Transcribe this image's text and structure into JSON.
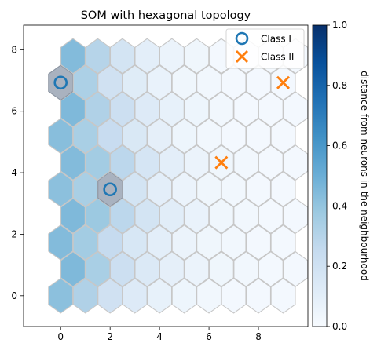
{
  "chart_data": {
    "type": "heatmap",
    "title": "SOM with hexagonal topology",
    "xlabel": "",
    "ylabel": "",
    "xlim": [
      -1.5,
      10.0
    ],
    "ylim": [
      -1.0,
      8.8
    ],
    "x_ticks": [
      0,
      2,
      4,
      6,
      8
    ],
    "y_ticks": [
      0,
      2,
      4,
      6,
      8
    ],
    "grid": false,
    "hex_grid": {
      "columns": 10,
      "rows": 10,
      "row_spacing": 0.866,
      "odd_row_offset": 0.5,
      "values_by_row_bottom_to_top": [
        [
          0.42,
          0.32,
          0.2,
          0.13,
          0.08,
          0.05,
          0.03,
          0.02,
          0.02,
          0.02
        ],
        [
          0.45,
          0.34,
          0.22,
          0.14,
          0.09,
          0.06,
          0.04,
          0.03,
          0.02,
          0.02
        ],
        [
          0.44,
          0.36,
          0.25,
          0.16,
          0.1,
          0.06,
          0.04,
          0.03,
          0.02,
          0.02
        ],
        [
          0.45,
          0.38,
          0.28,
          0.18,
          0.11,
          0.07,
          0.04,
          0.03,
          0.02,
          0.02
        ],
        [
          0.42,
          0.34,
          0.52,
          0.18,
          0.1,
          0.06,
          0.04,
          0.03,
          0.02,
          0.02
        ],
        [
          0.44,
          0.36,
          0.28,
          0.17,
          0.1,
          0.06,
          0.04,
          0.03,
          0.02,
          0.02
        ],
        [
          0.43,
          0.34,
          0.24,
          0.15,
          0.09,
          0.05,
          0.03,
          0.02,
          0.02,
          0.02
        ],
        [
          0.45,
          0.32,
          0.22,
          0.13,
          0.08,
          0.05,
          0.03,
          0.02,
          0.02,
          0.02
        ],
        [
          0.5,
          0.33,
          0.2,
          0.12,
          0.07,
          0.04,
          0.03,
          0.02,
          0.02,
          0.02
        ],
        [
          0.44,
          0.3,
          0.18,
          0.1,
          0.06,
          0.04,
          0.02,
          0.02,
          0.02,
          0.02
        ]
      ],
      "highlighted_cells": [
        [
          0,
          8
        ],
        [
          2,
          4
        ]
      ]
    },
    "series": [
      {
        "name": "Class I",
        "marker": "circle-open",
        "color": "#1f77b4",
        "points": [
          [
            0,
            6.93
          ],
          [
            2,
            3.46
          ]
        ]
      },
      {
        "name": "Class II",
        "marker": "x",
        "color": "#ff7f0e",
        "points": [
          [
            6.5,
            4.33
          ],
          [
            9,
            6.93
          ]
        ]
      }
    ],
    "legend_position": "top-right",
    "colorbar": {
      "label": "distance from neurons in the neighbourhood",
      "range": [
        0.0,
        1.0
      ],
      "ticks": [
        "0.0",
        "0.2",
        "0.4",
        "0.6",
        "0.8",
        "1.0"
      ],
      "colormap": "Blues",
      "tick_values": [
        0,
        0.2,
        0.4,
        0.6,
        0.8,
        1.0
      ]
    }
  }
}
